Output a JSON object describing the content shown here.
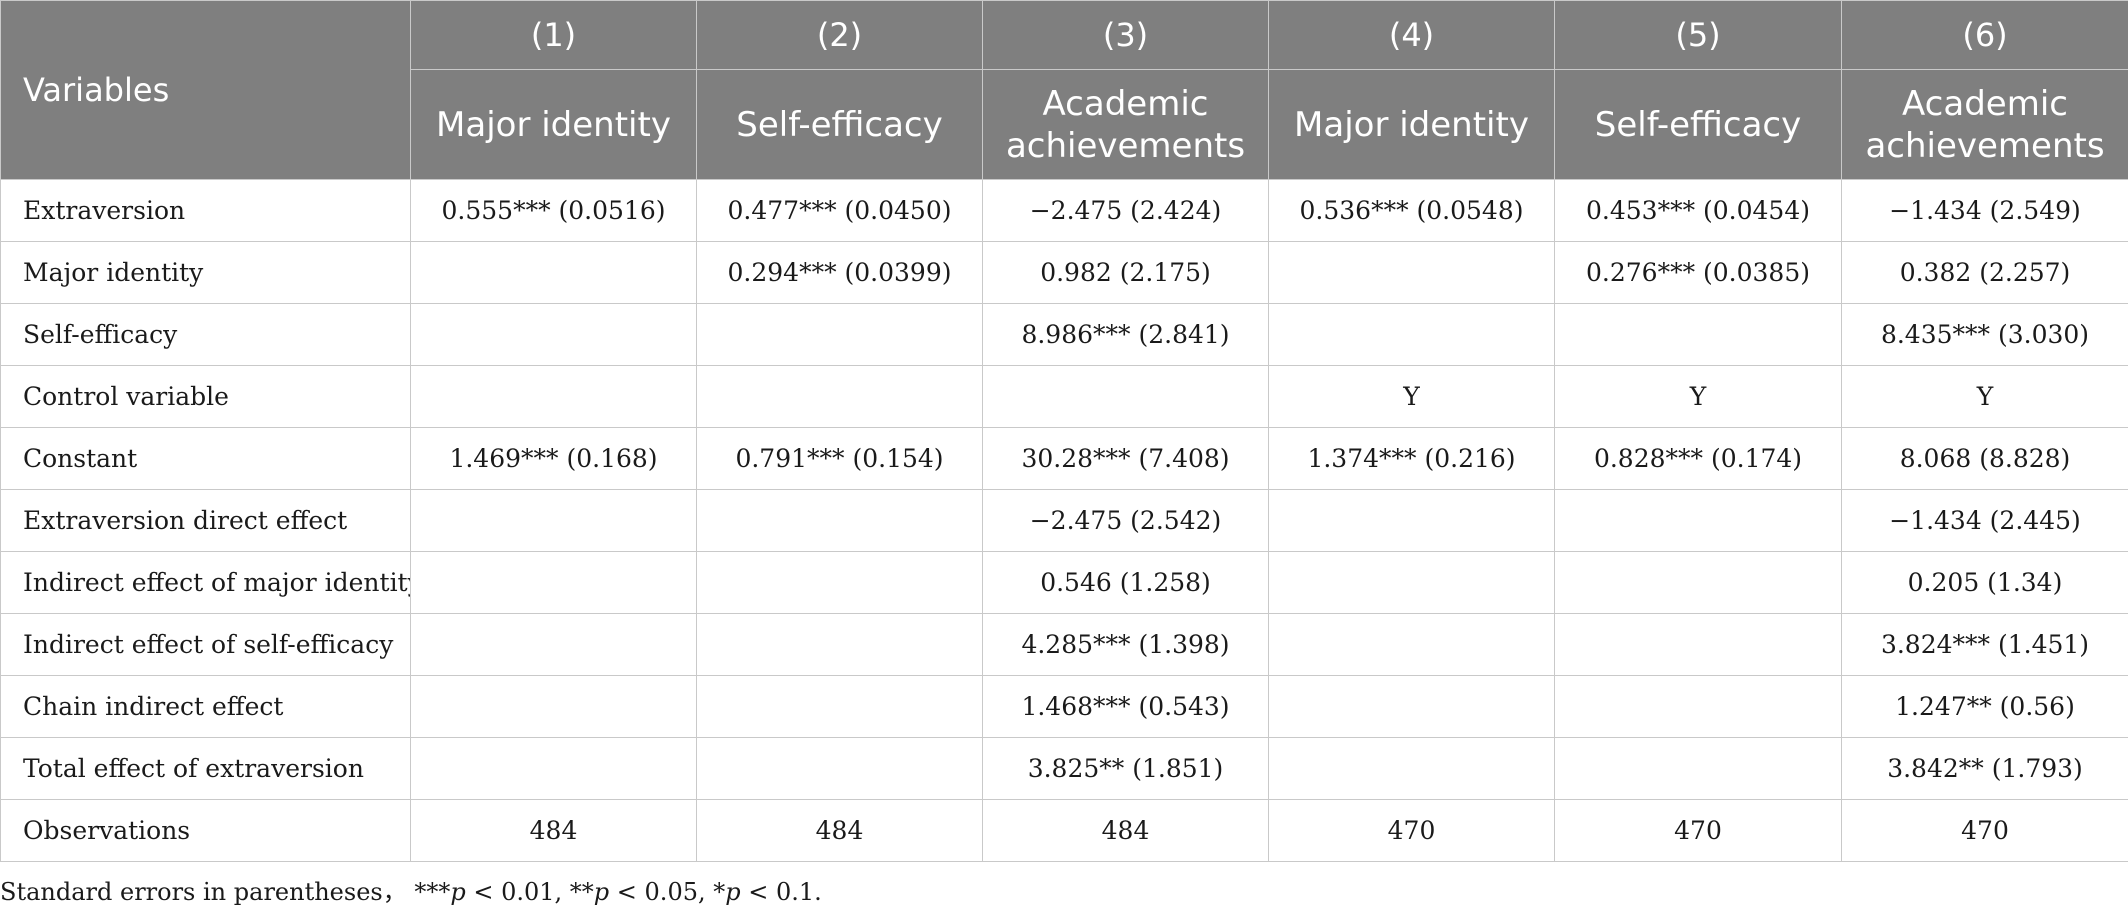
{
  "table": {
    "variables_header": "Variables",
    "columns": [
      {
        "number": "(1)",
        "name": "Major identity"
      },
      {
        "number": "(2)",
        "name": "Self-efficacy"
      },
      {
        "number": "(3)",
        "name": "Academic achievements"
      },
      {
        "number": "(4)",
        "name": "Major identity"
      },
      {
        "number": "(5)",
        "name": "Self-efficacy"
      },
      {
        "number": "(6)",
        "name": "Academic achievements"
      }
    ],
    "rows": [
      {
        "label": "Extraversion",
        "cells": [
          "0.555*** (0.0516)",
          "0.477*** (0.0450)",
          "−2.475 (2.424)",
          "0.536*** (0.0548)",
          "0.453*** (0.0454)",
          "−1.434 (2.549)"
        ]
      },
      {
        "label": "Major identity",
        "cells": [
          "",
          "0.294*** (0.0399)",
          "0.982 (2.175)",
          "",
          "0.276*** (0.0385)",
          "0.382 (2.257)"
        ]
      },
      {
        "label": "Self-efficacy",
        "cells": [
          "",
          "",
          "8.986*** (2.841)",
          "",
          "",
          "8.435*** (3.030)"
        ]
      },
      {
        "label": "Control variable",
        "cells": [
          "",
          "",
          "",
          "Y",
          "Y",
          "Y"
        ]
      },
      {
        "label": "Constant",
        "cells": [
          "1.469*** (0.168)",
          "0.791*** (0.154)",
          "30.28*** (7.408)",
          "1.374*** (0.216)",
          "0.828*** (0.174)",
          "8.068 (8.828)"
        ]
      },
      {
        "label": "Extraversion direct effect",
        "cells": [
          "",
          "",
          "−2.475 (2.542)",
          "",
          "",
          "−1.434 (2.445)"
        ]
      },
      {
        "label": "Indirect effect of major identity",
        "cells": [
          "",
          "",
          "0.546 (1.258)",
          "",
          "",
          "0.205 (1.34)"
        ]
      },
      {
        "label": "Indirect effect of self-efficacy",
        "cells": [
          "",
          "",
          "4.285*** (1.398)",
          "",
          "",
          "3.824*** (1.451)"
        ]
      },
      {
        "label": "Chain indirect effect",
        "cells": [
          "",
          "",
          "1.468*** (0.543)",
          "",
          "",
          "1.247** (0.56)"
        ]
      },
      {
        "label": "Total effect of extraversion",
        "cells": [
          "",
          "",
          "3.825** (1.851)",
          "",
          "",
          "3.842** (1.793)"
        ]
      },
      {
        "label": "Observations",
        "cells": [
          "484",
          "484",
          "484",
          "470",
          "470",
          "470"
        ]
      }
    ]
  },
  "note": {
    "lead": "Standard errors in parentheses，",
    "s1": "***",
    "p1": "p",
    "t1": " < 0.01, ",
    "s2": "**",
    "p2": "p",
    "t2": " < 0.05, ",
    "s3": "*",
    "p3": "p",
    "t3": " < 0.1."
  },
  "colors": {
    "header_background": "#7f7f7f",
    "header_text": "#ffffff",
    "grid_line": "#c9c9c9"
  }
}
